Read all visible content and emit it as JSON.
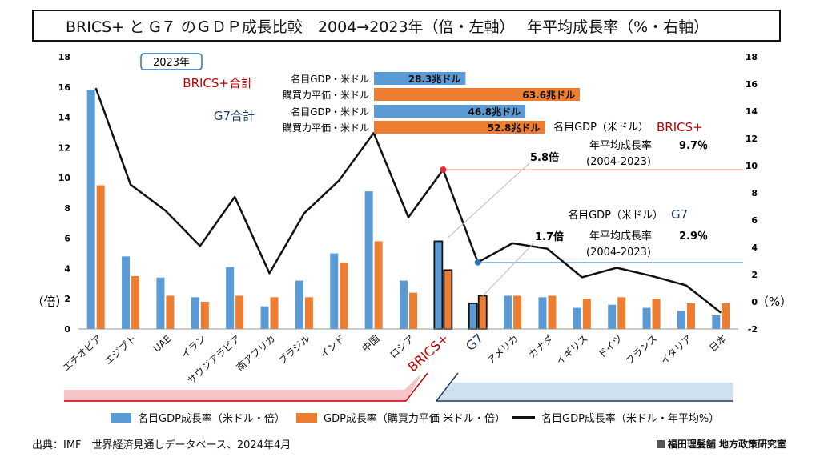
{
  "title": "BRICS+ と G７ のＧＤＰ成長比較　2004→2023年（倍・左軸）　 年平均成長率（%・右軸）",
  "chart_data": {
    "type": "bar",
    "categories": [
      "エチオピア",
      "エジプト",
      "UAE",
      "イラン",
      "サウジアラビア",
      "南アフリカ",
      "ブラジル",
      "インド",
      "中国",
      "ロシア",
      "BRICS+",
      "G7",
      "アメリカ",
      "カナダ",
      "イギリス",
      "ドイツ",
      "フランス",
      "イタリア",
      "日本"
    ],
    "series": [
      {
        "name": "名目GDP成長率（米ドル・倍）",
        "axis": "left",
        "color": "#5B9BD5",
        "values": [
          15.8,
          4.8,
          3.4,
          2.1,
          4.1,
          1.5,
          3.2,
          5.0,
          9.1,
          3.2,
          5.8,
          1.7,
          2.2,
          2.1,
          1.4,
          1.6,
          1.4,
          1.2,
          0.9
        ]
      },
      {
        "name": "GDP成長率（購買力平価 米ドル・倍）",
        "axis": "left",
        "color": "#ED7D31",
        "values": [
          9.5,
          3.5,
          2.2,
          1.8,
          2.2,
          2.1,
          2.1,
          4.4,
          5.8,
          2.4,
          3.9,
          2.2,
          2.2,
          2.2,
          2.0,
          2.1,
          2.0,
          1.7,
          1.7
        ]
      },
      {
        "name": "名目GDP成長率（米ドル・年平均%）",
        "axis": "right",
        "type": "line",
        "color": "#111111",
        "values": [
          15.7,
          8.6,
          6.7,
          4.1,
          7.7,
          2.1,
          6.5,
          8.9,
          12.4,
          6.2,
          9.7,
          2.9,
          4.3,
          3.9,
          1.8,
          2.5,
          1.9,
          1.2,
          -0.8
        ]
      }
    ],
    "ylim_left": [
      0,
      18
    ],
    "ylim_right": [
      -2,
      18
    ],
    "yticks_left": [
      "0",
      "2",
      "4",
      "6",
      "8",
      "10",
      "12",
      "14",
      "16",
      "18"
    ],
    "yticks_right": [
      "-2",
      "0",
      "2",
      "4",
      "6",
      "8",
      "10",
      "12",
      "14",
      "16",
      "18"
    ],
    "ylabel_left": "（倍）",
    "ylabel_right": "（%）",
    "legend_position": "bottom",
    "inset": {
      "year_label": "2023年",
      "groups": [
        {
          "label": "BRICS+合計",
          "color": "#C00000",
          "bars": [
            {
              "label": "名目GDP・米ドル",
              "value": 28.3,
              "value_text": "28.3兆ドル",
              "color": "#5B9BD5"
            },
            {
              "label": "購買力平価・米ドル",
              "value": 63.6,
              "value_text": "63.6兆ドル",
              "color": "#ED7D31"
            }
          ]
        },
        {
          "label": "G7合計",
          "color": "#1F3864",
          "bars": [
            {
              "label": "名目GDP・米ドル",
              "value": 46.8,
              "value_text": "46.8兆ドル",
              "color": "#5B9BD5"
            },
            {
              "label": "購買力平価・米ドル",
              "value": 52.8,
              "value_text": "52.8兆ドル",
              "color": "#ED7D31"
            }
          ]
        }
      ]
    },
    "annotations": {
      "brics": {
        "multiple": "5.8倍",
        "line1": "名目GDP（米ドル）",
        "group": "BRICS+",
        "line2": "年平均成長率",
        "rate": "9.7％",
        "period": "(2004-2023)",
        "rate_value": 9.7,
        "color": "#C00000",
        "point_color": "#E8292E",
        "refline_color": "#E46C6C"
      },
      "g7": {
        "multiple": "1.7倍",
        "line1": "名目GDP（米ドル）",
        "group": "G7",
        "line2": "年平均成長率",
        "rate": "2.9％",
        "period": "(2004-2023)",
        "rate_value": 2.9,
        "color": "#1F3864",
        "point_color": "#2E75B6",
        "refline_color": "#5BA7DA"
      }
    }
  },
  "source": "出典：IMF　世界経済見通しデータベース、2024年4月",
  "credit": "福田理髪舗 地方政策研究室"
}
